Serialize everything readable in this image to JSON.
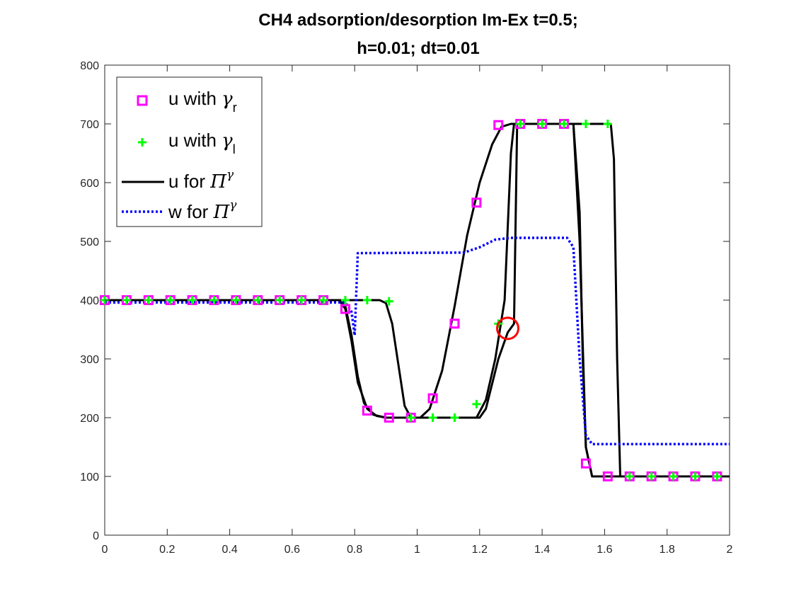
{
  "chart_data": {
    "type": "line",
    "title": "CH4 adsorption/desorption Im-Ex t=0.5;",
    "subtitle": "h=0.01; dt=0.01",
    "xlabel": "",
    "ylabel": "",
    "xlim": [
      0,
      2
    ],
    "ylim": [
      0,
      800
    ],
    "x_ticks": [
      0,
      0.2,
      0.4,
      0.6,
      0.8,
      1,
      1.2,
      1.4,
      1.6,
      1.8,
      2
    ],
    "x_tick_labels": [
      "0",
      "0.2",
      "0.4",
      "0.6",
      "0.8",
      "1",
      "1.2",
      "1.4",
      "1.6",
      "1.8",
      "2"
    ],
    "y_ticks": [
      0,
      100,
      200,
      300,
      400,
      500,
      600,
      700,
      800
    ],
    "y_tick_labels": [
      "0",
      "100",
      "200",
      "300",
      "400",
      "500",
      "600",
      "700",
      "800"
    ],
    "grid": false,
    "legend_position": "top-left",
    "legend": [
      {
        "label": "u with ",
        "symbol": "γ",
        "sub": "r",
        "sup": ""
      },
      {
        "label": "u with ",
        "symbol": "γ",
        "sub": "l",
        "sup": ""
      },
      {
        "label": "u for ",
        "symbol": "Π",
        "sub": "",
        "sup": "γ"
      },
      {
        "label": "w for ",
        "symbol": "Π",
        "sub": "",
        "sup": "γ"
      }
    ],
    "series": [
      {
        "name": "u with γr",
        "style": "square-markers",
        "color": "#ff00ff",
        "points": [
          [
            0,
            400
          ],
          [
            0.07,
            400
          ],
          [
            0.14,
            400
          ],
          [
            0.21,
            400
          ],
          [
            0.28,
            400
          ],
          [
            0.35,
            400
          ],
          [
            0.42,
            400
          ],
          [
            0.49,
            400
          ],
          [
            0.56,
            400
          ],
          [
            0.63,
            400
          ],
          [
            0.7,
            400
          ],
          [
            0.77,
            385
          ],
          [
            0.84,
            212
          ],
          [
            0.91,
            200
          ],
          [
            0.98,
            200
          ],
          [
            1.05,
            233
          ],
          [
            1.12,
            360
          ],
          [
            1.19,
            566
          ],
          [
            1.26,
            698
          ],
          [
            1.33,
            700
          ],
          [
            1.4,
            700
          ],
          [
            1.47,
            700
          ],
          [
            1.54,
            122
          ],
          [
            1.61,
            100
          ],
          [
            1.68,
            100
          ],
          [
            1.75,
            100
          ],
          [
            1.82,
            100
          ],
          [
            1.89,
            100
          ],
          [
            1.96,
            100
          ]
        ]
      },
      {
        "name": "u with γl",
        "style": "plus-markers",
        "color": "#00ff00",
        "points": [
          [
            0,
            400
          ],
          [
            0.07,
            400
          ],
          [
            0.14,
            400
          ],
          [
            0.21,
            400
          ],
          [
            0.28,
            400
          ],
          [
            0.35,
            400
          ],
          [
            0.42,
            400
          ],
          [
            0.49,
            400
          ],
          [
            0.56,
            400
          ],
          [
            0.63,
            400
          ],
          [
            0.7,
            400
          ],
          [
            0.77,
            400
          ],
          [
            0.84,
            400
          ],
          [
            0.91,
            398
          ],
          [
            0.98,
            200
          ],
          [
            1.05,
            200
          ],
          [
            1.12,
            200
          ],
          [
            1.19,
            223
          ],
          [
            1.26,
            360
          ],
          [
            1.33,
            700
          ],
          [
            1.4,
            700
          ],
          [
            1.47,
            700
          ],
          [
            1.54,
            700
          ],
          [
            1.61,
            700
          ],
          [
            1.68,
            100
          ],
          [
            1.75,
            100
          ],
          [
            1.82,
            100
          ],
          [
            1.89,
            100
          ],
          [
            1.96,
            100
          ]
        ]
      },
      {
        "name": "u for Πγ",
        "style": "solid",
        "color": "#000000",
        "lines": [
          [
            [
              0,
              400
            ],
            [
              0.75,
              400
            ],
            [
              0.77,
              390
            ],
            [
              0.79,
              340
            ],
            [
              0.81,
              270
            ],
            [
              0.83,
              225
            ],
            [
              0.86,
              205
            ],
            [
              0.9,
              200
            ],
            [
              1.2,
              200
            ],
            [
              1.22,
              215
            ],
            [
              1.26,
              300
            ],
            [
              1.29,
              345
            ],
            [
              1.31,
              360
            ],
            [
              1.32,
              700
            ],
            [
              1.5,
              700
            ],
            [
              1.52,
              550
            ],
            [
              1.53,
              300
            ],
            [
              1.54,
              150
            ],
            [
              1.56,
              100
            ],
            [
              2,
              100
            ]
          ],
          [
            [
              0,
              400
            ],
            [
              0.75,
              400
            ],
            [
              0.77,
              385
            ],
            [
              0.79,
              330
            ],
            [
              0.81,
              260
            ],
            [
              0.84,
              215
            ],
            [
              0.87,
              203
            ],
            [
              0.9,
              200
            ],
            [
              1.19,
              200
            ],
            [
              1.22,
              230
            ],
            [
              1.25,
              300
            ],
            [
              1.28,
              400
            ],
            [
              1.3,
              650
            ],
            [
              1.31,
              700
            ],
            [
              1.5,
              700
            ],
            [
              1.52,
              500
            ],
            [
              1.54,
              150
            ],
            [
              1.56,
              100
            ],
            [
              2,
              100
            ]
          ],
          [
            [
              0,
              400
            ],
            [
              0.88,
              400
            ],
            [
              0.9,
              395
            ],
            [
              0.92,
              360
            ],
            [
              0.94,
              290
            ],
            [
              0.96,
              220
            ],
            [
              0.98,
              200
            ],
            [
              1.01,
              200
            ],
            [
              1.04,
              215
            ],
            [
              1.08,
              280
            ],
            [
              1.12,
              390
            ],
            [
              1.16,
              510
            ],
            [
              1.2,
              600
            ],
            [
              1.24,
              665
            ],
            [
              1.27,
              695
            ],
            [
              1.3,
              700
            ],
            [
              1.62,
              700
            ],
            [
              1.63,
              640
            ],
            [
              1.64,
              300
            ],
            [
              1.65,
              100
            ],
            [
              2,
              100
            ]
          ]
        ]
      },
      {
        "name": "w for Πγ",
        "style": "dotted",
        "color": "#0000ff",
        "lines": [
          [
            [
              0,
              396
            ],
            [
              0.77,
              396
            ],
            [
              0.79,
              380
            ],
            [
              0.8,
              340
            ],
            [
              0.81,
              480
            ],
            [
              1.15,
              481
            ],
            [
              1.2,
              490
            ],
            [
              1.25,
              503
            ],
            [
              1.3,
              506
            ],
            [
              1.48,
              506
            ],
            [
              1.5,
              490
            ],
            [
              1.52,
              300
            ],
            [
              1.54,
              170
            ],
            [
              1.56,
              155
            ],
            [
              2,
              155
            ]
          ]
        ]
      }
    ],
    "annotations": [
      {
        "type": "circle",
        "color": "#ff0000",
        "x": 1.29,
        "y": 352
      }
    ]
  }
}
